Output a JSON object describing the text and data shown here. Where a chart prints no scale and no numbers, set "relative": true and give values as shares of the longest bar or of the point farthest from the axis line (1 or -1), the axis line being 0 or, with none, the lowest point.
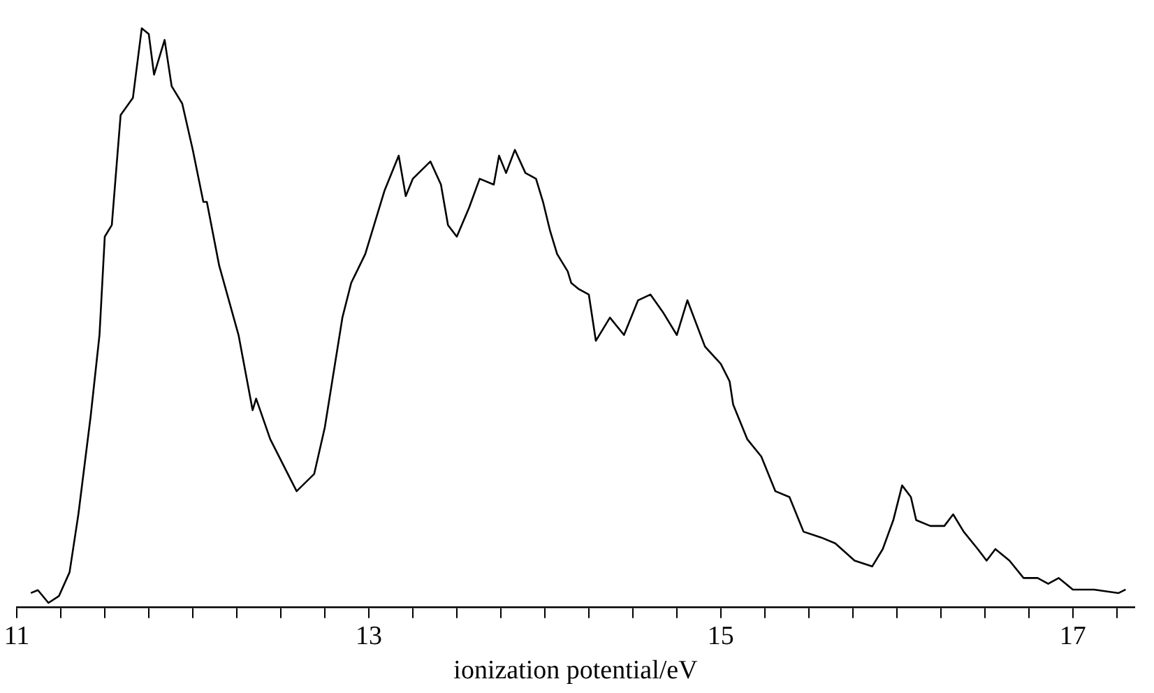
{
  "chart_data": {
    "type": "line",
    "relative": true,
    "xlabel": "ionization potential/eV",
    "grid": false,
    "legend": false,
    "marker": "none",
    "line_style": "solid",
    "x": [
      11.08,
      11.12,
      11.18,
      11.24,
      11.3,
      11.35,
      11.42,
      11.47,
      11.5,
      11.54,
      11.59,
      11.66,
      11.71,
      11.75,
      11.78,
      11.8,
      11.84,
      11.88,
      11.94,
      12.0,
      12.06,
      12.08,
      12.15,
      12.26,
      12.34,
      12.36,
      12.44,
      12.54,
      12.59,
      12.69,
      12.75,
      12.85,
      12.9,
      12.98,
      13.03,
      13.09,
      13.17,
      13.21,
      13.25,
      13.35,
      13.41,
      13.45,
      13.5,
      13.57,
      13.63,
      13.71,
      13.74,
      13.78,
      13.83,
      13.89,
      13.95,
      13.99,
      14.03,
      14.07,
      14.13,
      14.15,
      14.19,
      14.25,
      14.29,
      14.37,
      14.45,
      14.53,
      14.6,
      14.67,
      14.75,
      14.81,
      14.91,
      15.0,
      15.05,
      15.07,
      15.15,
      15.23,
      15.31,
      15.39,
      15.43,
      15.47,
      15.57,
      15.65,
      15.76,
      15.86,
      15.92,
      15.98,
      16.03,
      16.08,
      16.11,
      16.19,
      16.27,
      16.32,
      16.38,
      16.46,
      16.51,
      16.56,
      16.64,
      16.72,
      16.8,
      16.86,
      16.92,
      17.0,
      17.12,
      17.26,
      17.3
    ],
    "series": [
      {
        "color": "#000000",
        "values": [
          0.024,
          0.029,
          0.007,
          0.019,
          0.06,
          0.16,
          0.33,
          0.47,
          0.64,
          0.66,
          0.85,
          0.88,
          1.0,
          0.99,
          0.92,
          0.94,
          0.98,
          0.9,
          0.87,
          0.79,
          0.7,
          0.7,
          0.59,
          0.47,
          0.34,
          0.36,
          0.29,
          0.23,
          0.2,
          0.23,
          0.31,
          0.5,
          0.56,
          0.61,
          0.66,
          0.72,
          0.78,
          0.71,
          0.74,
          0.77,
          0.73,
          0.66,
          0.64,
          0.69,
          0.74,
          0.73,
          0.78,
          0.75,
          0.79,
          0.75,
          0.74,
          0.7,
          0.65,
          0.61,
          0.58,
          0.56,
          0.55,
          0.54,
          0.46,
          0.5,
          0.47,
          0.53,
          0.54,
          0.51,
          0.47,
          0.53,
          0.45,
          0.42,
          0.39,
          0.35,
          0.29,
          0.26,
          0.2,
          0.19,
          0.16,
          0.13,
          0.12,
          0.11,
          0.08,
          0.07,
          0.1,
          0.15,
          0.21,
          0.19,
          0.15,
          0.14,
          0.14,
          0.16,
          0.13,
          0.1,
          0.08,
          0.1,
          0.08,
          0.05,
          0.05,
          0.04,
          0.05,
          0.03,
          0.03,
          0.024,
          0.03
        ]
      }
    ],
    "xlim": [
      11,
      17.35
    ],
    "xticks": [
      11,
      {
        "value": 11.25,
        "label": null
      },
      {
        "value": 11.5,
        "label": null
      },
      {
        "value": 11.75,
        "label": null
      },
      {
        "value": 12,
        "label": null
      },
      {
        "value": 12.25,
        "label": null
      },
      {
        "value": 12.5,
        "label": null
      },
      {
        "value": 12.75,
        "label": null
      },
      13,
      {
        "value": 13.25,
        "label": null
      },
      {
        "value": 13.5,
        "label": null
      },
      {
        "value": 13.75,
        "label": null
      },
      {
        "value": 14,
        "label": null
      },
      {
        "value": 14.25,
        "label": null
      },
      {
        "value": 14.5,
        "label": null
      },
      {
        "value": 14.75,
        "label": null
      },
      15,
      {
        "value": 15.25,
        "label": null
      },
      {
        "value": 15.5,
        "label": null
      },
      {
        "value": 15.75,
        "label": null
      },
      {
        "value": 16,
        "label": null
      },
      {
        "value": 16.25,
        "label": null
      },
      {
        "value": 16.5,
        "label": null
      },
      {
        "value": 16.75,
        "label": null
      },
      17,
      {
        "value": 17.25,
        "label": null
      }
    ]
  }
}
